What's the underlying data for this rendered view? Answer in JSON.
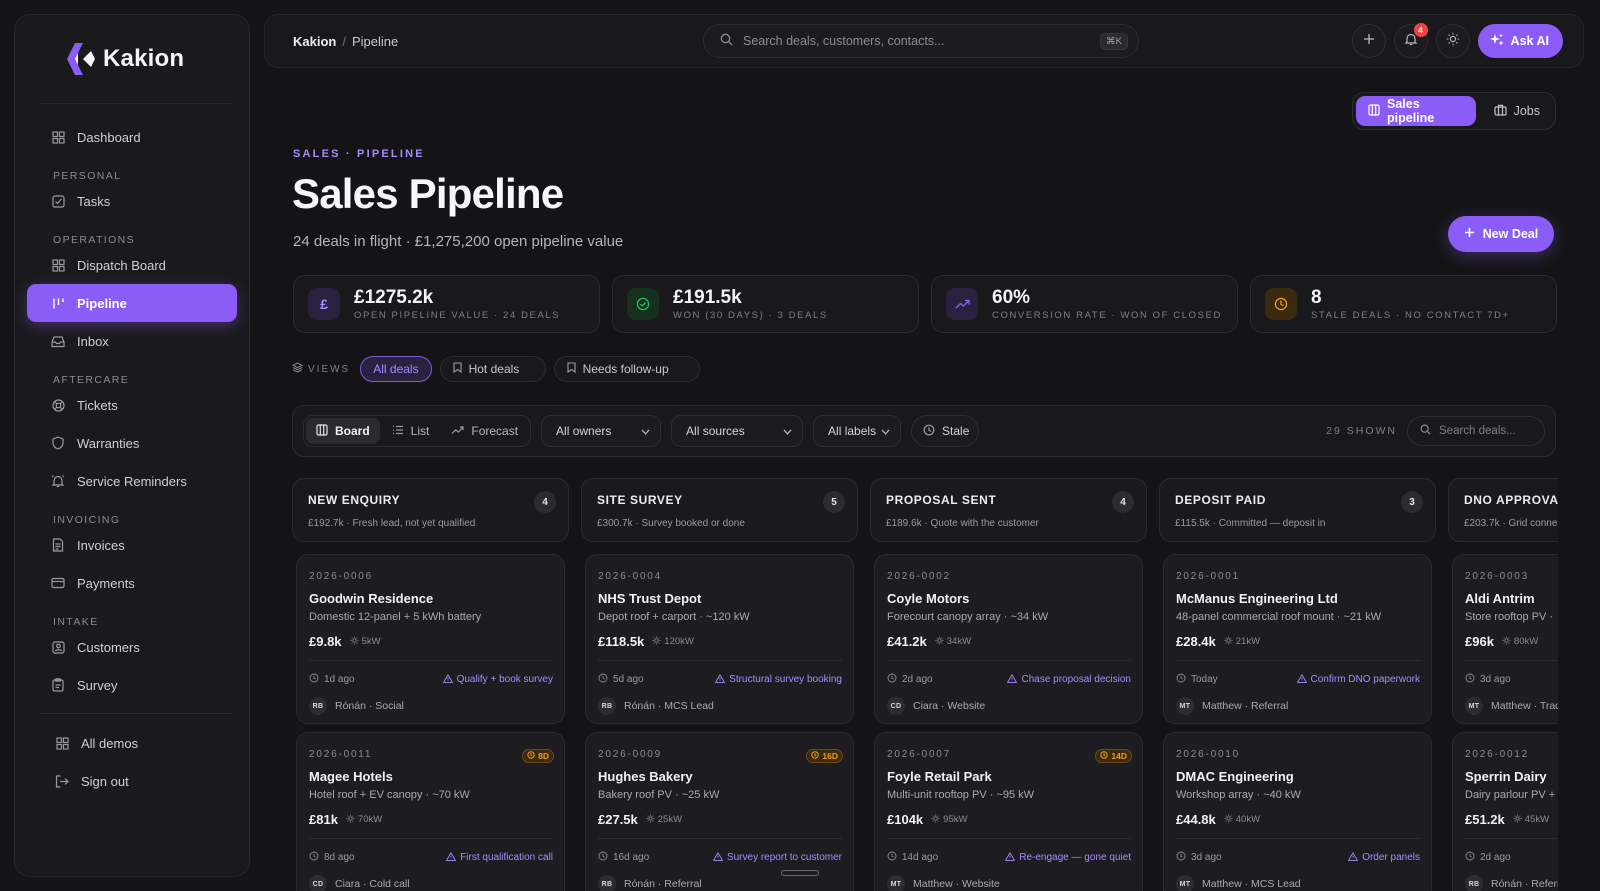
{
  "brand": {
    "name": "Kakion"
  },
  "sidebar": {
    "top_item": "Dashboard",
    "sections": [
      {
        "label": "PERSONAL",
        "items": [
          "Tasks"
        ]
      },
      {
        "label": "OPERATIONS",
        "items": [
          "Dispatch Board",
          "Pipeline",
          "Inbox"
        ]
      },
      {
        "label": "AFTERCARE",
        "items": [
          "Tickets",
          "Warranties",
          "Service Reminders"
        ]
      },
      {
        "label": "INVOICING",
        "items": [
          "Invoices",
          "Payments"
        ]
      },
      {
        "label": "INTAKE",
        "items": [
          "Customers",
          "Survey"
        ]
      }
    ],
    "footer": [
      "All demos",
      "Sign out"
    ],
    "active": "Pipeline"
  },
  "topbar": {
    "breadcrumb_root": "Kakion",
    "breadcrumb_sep": "/",
    "breadcrumb_current": "Pipeline",
    "search_placeholder": "Search deals, customers, contacts...",
    "search_shortcut": "⌘K",
    "notification_count": "4",
    "ask_ai_label": "Ask AI"
  },
  "mode_switch": {
    "sales_label": "Sales pipeline",
    "jobs_label": "Jobs"
  },
  "header": {
    "eyebrow": "SALES · PIPELINE",
    "title": "Sales Pipeline",
    "subtitle": "24 deals in flight · £1,275,200 open pipeline value",
    "new_deal_label": "New Deal"
  },
  "kpis": [
    {
      "icon": "pound-icon",
      "value": "£1275.2k",
      "label": "OPEN PIPELINE VALUE · 24 DEALS",
      "accent": "#8b5cf6"
    },
    {
      "icon": "check-circle-icon",
      "value": "£191.5k",
      "label": "WON (30 DAYS) · 3 DEALS",
      "accent": "#22c55e"
    },
    {
      "icon": "trend-up-icon",
      "value": "60%",
      "label": "CONVERSION RATE · WON OF CLOSED",
      "accent": "#8b5cf6"
    },
    {
      "icon": "clock-icon",
      "value": "8",
      "label": "STALE DEALS · NO CONTACT 7D+",
      "accent": "#f59e0b"
    }
  ],
  "views": {
    "label": "VIEWS",
    "chips": [
      "All deals",
      "Hot deals",
      "Needs follow-up"
    ],
    "active": "All deals"
  },
  "toolbar": {
    "modes": [
      "Board",
      "List",
      "Forecast"
    ],
    "active_mode": "Board",
    "owner_filter": "All owners",
    "source_filter": "All sources",
    "label_filter": "All labels",
    "stale_label": "Stale",
    "shown": "29 SHOWN",
    "search_placeholder": "Search deals..."
  },
  "columns": [
    {
      "title": "NEW ENQUIRY",
      "count": "4",
      "sub": "£192.7k · Fresh lead, not yet qualified",
      "cards": [
        {
          "ref": "2026-0006",
          "flag": "",
          "name": "Goodwin Residence",
          "desc": "Domestic 12-panel + 5 kWh battery",
          "amount": "£9.8k",
          "kw": "5kW",
          "age": "1d ago",
          "next": "Qualify + book survey",
          "initials": "RB",
          "owner": "Rónán · Social"
        },
        {
          "ref": "2026-0011",
          "flag": "8D",
          "name": "Magee Hotels",
          "desc": "Hotel roof + EV canopy · ~70 kW",
          "amount": "£81k",
          "kw": "70kW",
          "age": "8d ago",
          "next": "First qualification call",
          "initials": "CD",
          "owner": "Ciara · Cold call"
        }
      ]
    },
    {
      "title": "SITE SURVEY",
      "count": "5",
      "sub": "£300.7k · Survey booked or done",
      "cards": [
        {
          "ref": "2026-0004",
          "flag": "",
          "name": "NHS Trust Depot",
          "desc": "Depot roof + carport · ~120 kW",
          "amount": "£118.5k",
          "kw": "120kW",
          "age": "5d ago",
          "next": "Structural survey booking",
          "initials": "RB",
          "owner": "Rónán · MCS Lead"
        },
        {
          "ref": "2026-0009",
          "flag": "16D",
          "name": "Hughes Bakery",
          "desc": "Bakery roof PV · ~25 kW",
          "amount": "£27.5k",
          "kw": "25kW",
          "age": "16d ago",
          "next": "Survey report to customer",
          "initials": "RB",
          "owner": "Rónán · Referral"
        }
      ]
    },
    {
      "title": "PROPOSAL SENT",
      "count": "4",
      "sub": "£189.6k · Quote with the customer",
      "cards": [
        {
          "ref": "2026-0002",
          "flag": "",
          "name": "Coyle Motors",
          "desc": "Forecourt canopy array · ~34 kW",
          "amount": "£41.2k",
          "kw": "34kW",
          "age": "2d ago",
          "next": "Chase proposal decision",
          "initials": "CD",
          "owner": "Ciara · Website"
        },
        {
          "ref": "2026-0007",
          "flag": "14D",
          "name": "Foyle Retail Park",
          "desc": "Multi-unit rooftop PV · ~95 kW",
          "amount": "£104k",
          "kw": "95kW",
          "age": "14d ago",
          "next": "Re-engage — gone quiet",
          "initials": "MT",
          "owner": "Matthew · Website"
        }
      ]
    },
    {
      "title": "DEPOSIT PAID",
      "count": "3",
      "sub": "£115.5k · Committed — deposit in",
      "cards": [
        {
          "ref": "2026-0001",
          "flag": "",
          "name": "McManus Engineering Ltd",
          "desc": "48-panel commercial roof mount · ~21 kW",
          "amount": "£28.4k",
          "kw": "21kW",
          "age": "Today",
          "next": "Confirm DNO paperwork",
          "initials": "MT",
          "owner": "Matthew · Referral"
        },
        {
          "ref": "2026-0010",
          "flag": "",
          "name": "DMAC Engineering",
          "desc": "Workshop array · ~40 kW",
          "amount": "£44.8k",
          "kw": "40kW",
          "age": "3d ago",
          "next": "Order panels",
          "initials": "MT",
          "owner": "Matthew · MCS Lead"
        }
      ]
    },
    {
      "title": "DNO APPROVAL",
      "count": "",
      "sub": "£203.7k · Grid conne",
      "cards": [
        {
          "ref": "2026-0003",
          "flag": "",
          "name": "Aldi Antrim",
          "desc": "Store rooftop PV · ",
          "amount": "£96k",
          "kw": "80kW",
          "age": "3d ago",
          "next": "",
          "initials": "MT",
          "owner": "Matthew · Trade"
        },
        {
          "ref": "2026-0012",
          "flag": "",
          "name": "Sperrin Dairy",
          "desc": "Dairy parlour PV +",
          "amount": "£51.2k",
          "kw": "45kW",
          "age": "2d ago",
          "next": "",
          "initials": "RB",
          "owner": "Rónán · Referra"
        }
      ]
    }
  ]
}
